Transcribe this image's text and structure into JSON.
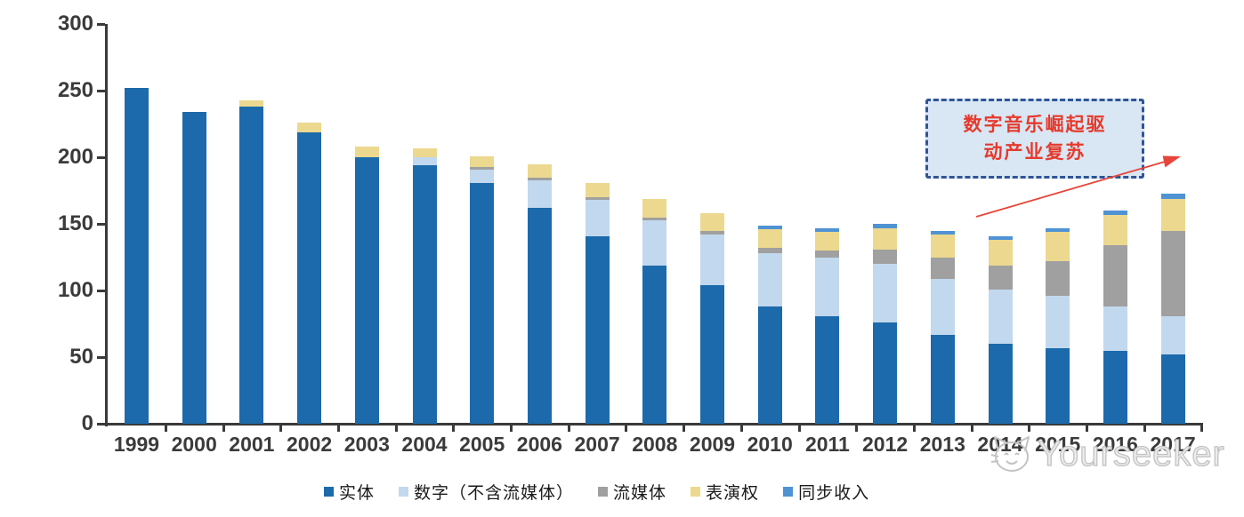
{
  "chart_data": {
    "type": "bar",
    "stacked": true,
    "title": "",
    "xlabel": "",
    "ylabel": "",
    "ylim": [
      0,
      300
    ],
    "y_ticks": [
      0,
      50,
      100,
      150,
      200,
      250,
      300
    ],
    "grid": false,
    "legend_position": "bottom",
    "categories": [
      "1999",
      "2000",
      "2001",
      "2002",
      "2003",
      "2004",
      "2005",
      "2006",
      "2007",
      "2008",
      "2009",
      "2010",
      "2011",
      "2012",
      "2013",
      "2014",
      "2015",
      "2016",
      "2017"
    ],
    "series": [
      {
        "name": "实体",
        "color": "#1c6aab",
        "values": [
          252,
          234,
          238,
          219,
          200,
          194,
          181,
          162,
          141,
          119,
          104,
          88,
          81,
          76,
          67,
          60,
          57,
          55,
          52
        ]
      },
      {
        "name": "数字（不含流媒体）",
        "color": "#c2d8ee",
        "values": [
          0,
          0,
          0,
          0,
          0,
          6,
          10,
          21,
          27,
          34,
          38,
          40,
          44,
          44,
          42,
          41,
          39,
          33,
          29
        ]
      },
      {
        "name": "流媒体",
        "color": "#a0a0a0",
        "values": [
          0,
          0,
          0,
          0,
          0,
          0,
          2,
          2,
          2,
          2,
          3,
          4,
          5,
          11,
          16,
          18,
          26,
          46,
          64
        ]
      },
      {
        "name": "表演权",
        "color": "#ecd88f",
        "values": [
          0,
          0,
          5,
          7,
          8,
          7,
          8,
          10,
          11,
          14,
          13,
          14,
          14,
          16,
          17,
          19,
          22,
          23,
          24
        ]
      },
      {
        "name": "同步收入",
        "color": "#4f93d4",
        "values": [
          0,
          0,
          0,
          0,
          0,
          0,
          0,
          0,
          0,
          0,
          0,
          3,
          3,
          3,
          3,
          3,
          3,
          3,
          4
        ]
      }
    ]
  },
  "annotation": {
    "line1": "数字音乐崛起驱",
    "line2": "动产业复苏",
    "text_color": "#e53a2c",
    "border_color": "#2f5597",
    "background_color": "#d9e6f3",
    "arrow_color": "#e8453a"
  },
  "axis": {
    "line_color": "#3a3a3a",
    "label_color": "#3b3b3b"
  },
  "watermark": {
    "text": "Yourseeker",
    "logo": "cat-logo-icon",
    "color": "#c3c3c3"
  }
}
